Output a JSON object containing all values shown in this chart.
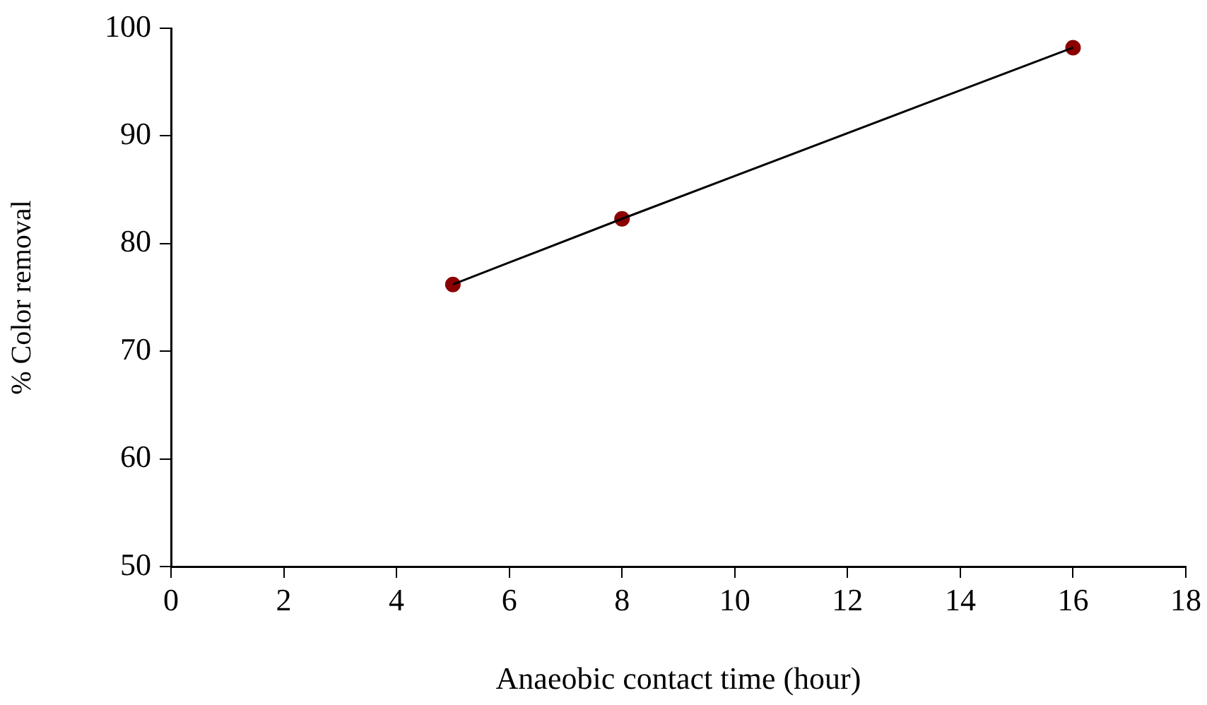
{
  "chart_data": {
    "type": "scatter",
    "xlabel": "Anaeobic contact time (hour)",
    "ylabel": "% Color removal",
    "xlim": [
      0,
      18
    ],
    "xticks": [
      0,
      2,
      4,
      6,
      8,
      10,
      12,
      14,
      16,
      18
    ],
    "ylim": [
      50,
      100
    ],
    "yticks": [
      50,
      60,
      70,
      80,
      90,
      100
    ],
    "grid": false,
    "legend": false,
    "series": [
      {
        "type": "line",
        "color": "#000000",
        "x": [
          5,
          8,
          16
        ],
        "values": [
          76.2,
          82.3,
          98.2
        ],
        "marker": "none"
      },
      {
        "color": "#8b0000",
        "x": [
          5,
          8,
          16
        ],
        "values": [
          76.2,
          82.3,
          98.2
        ],
        "marker": "circle"
      }
    ]
  }
}
